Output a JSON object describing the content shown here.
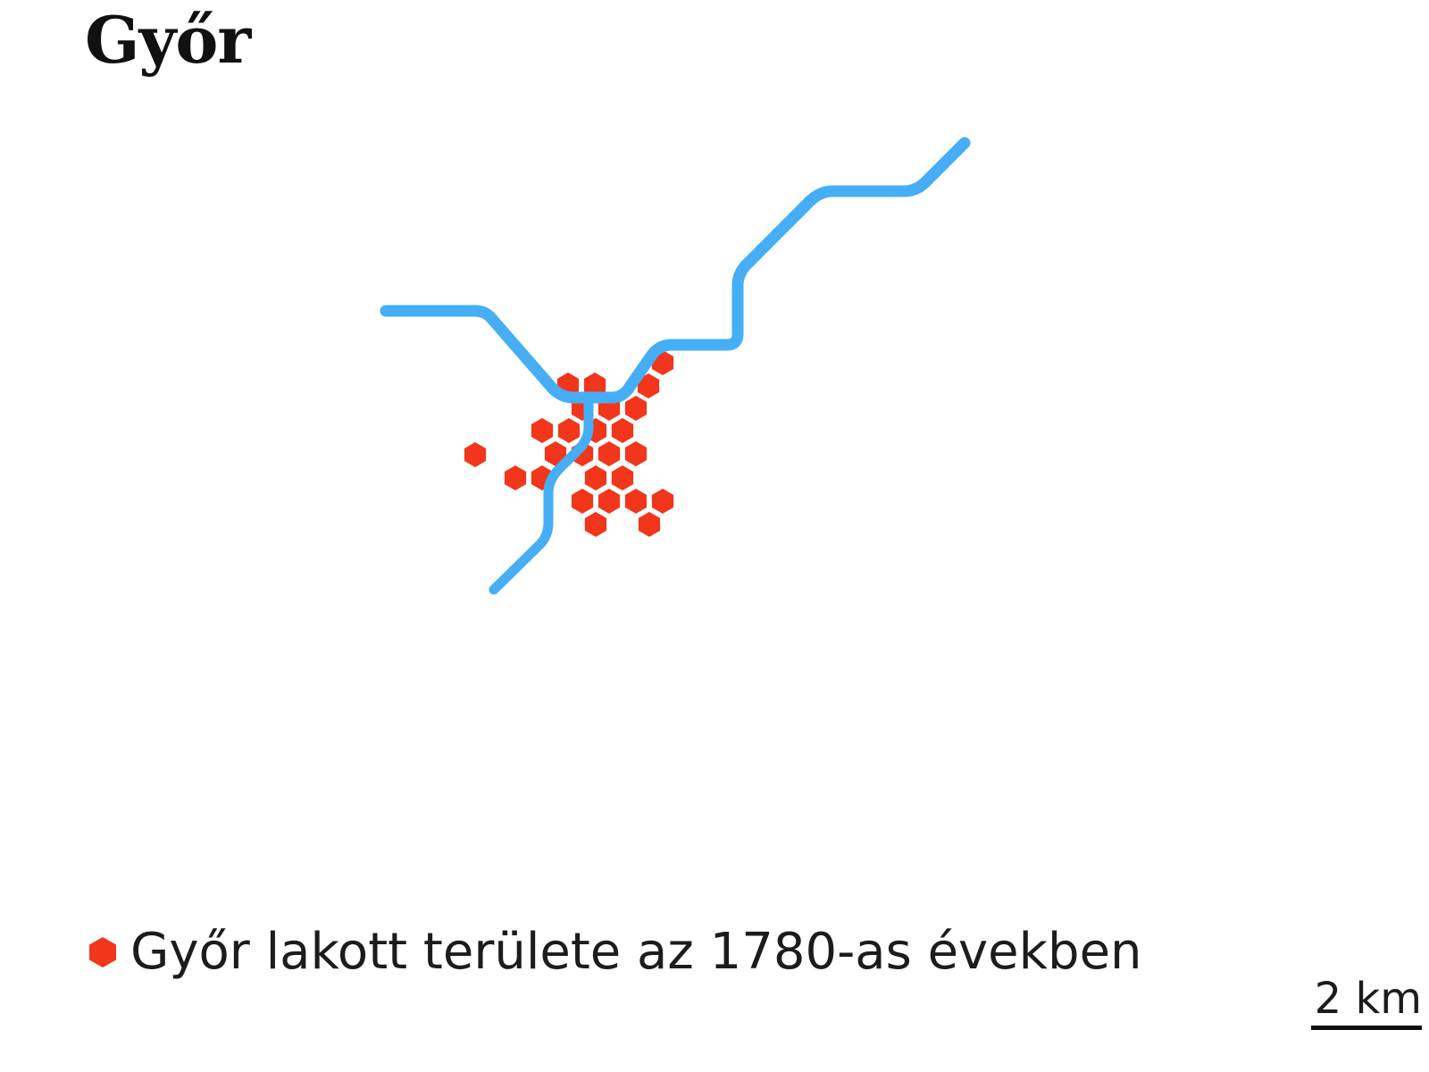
{
  "title": "Győr",
  "colors": {
    "river": "#45aef5",
    "settlement": "#f2361c",
    "text": "#1c1c1c",
    "background": "#ffffff"
  },
  "legend": {
    "marker_icon": "hexagon-icon",
    "label": "Győr lakott területe az 1780-as években"
  },
  "scale": {
    "label": "2 km"
  },
  "map": {
    "features": [
      {
        "name": "river",
        "type": "line"
      },
      {
        "name": "settlement-area",
        "type": "hexagon-cells"
      }
    ]
  }
}
